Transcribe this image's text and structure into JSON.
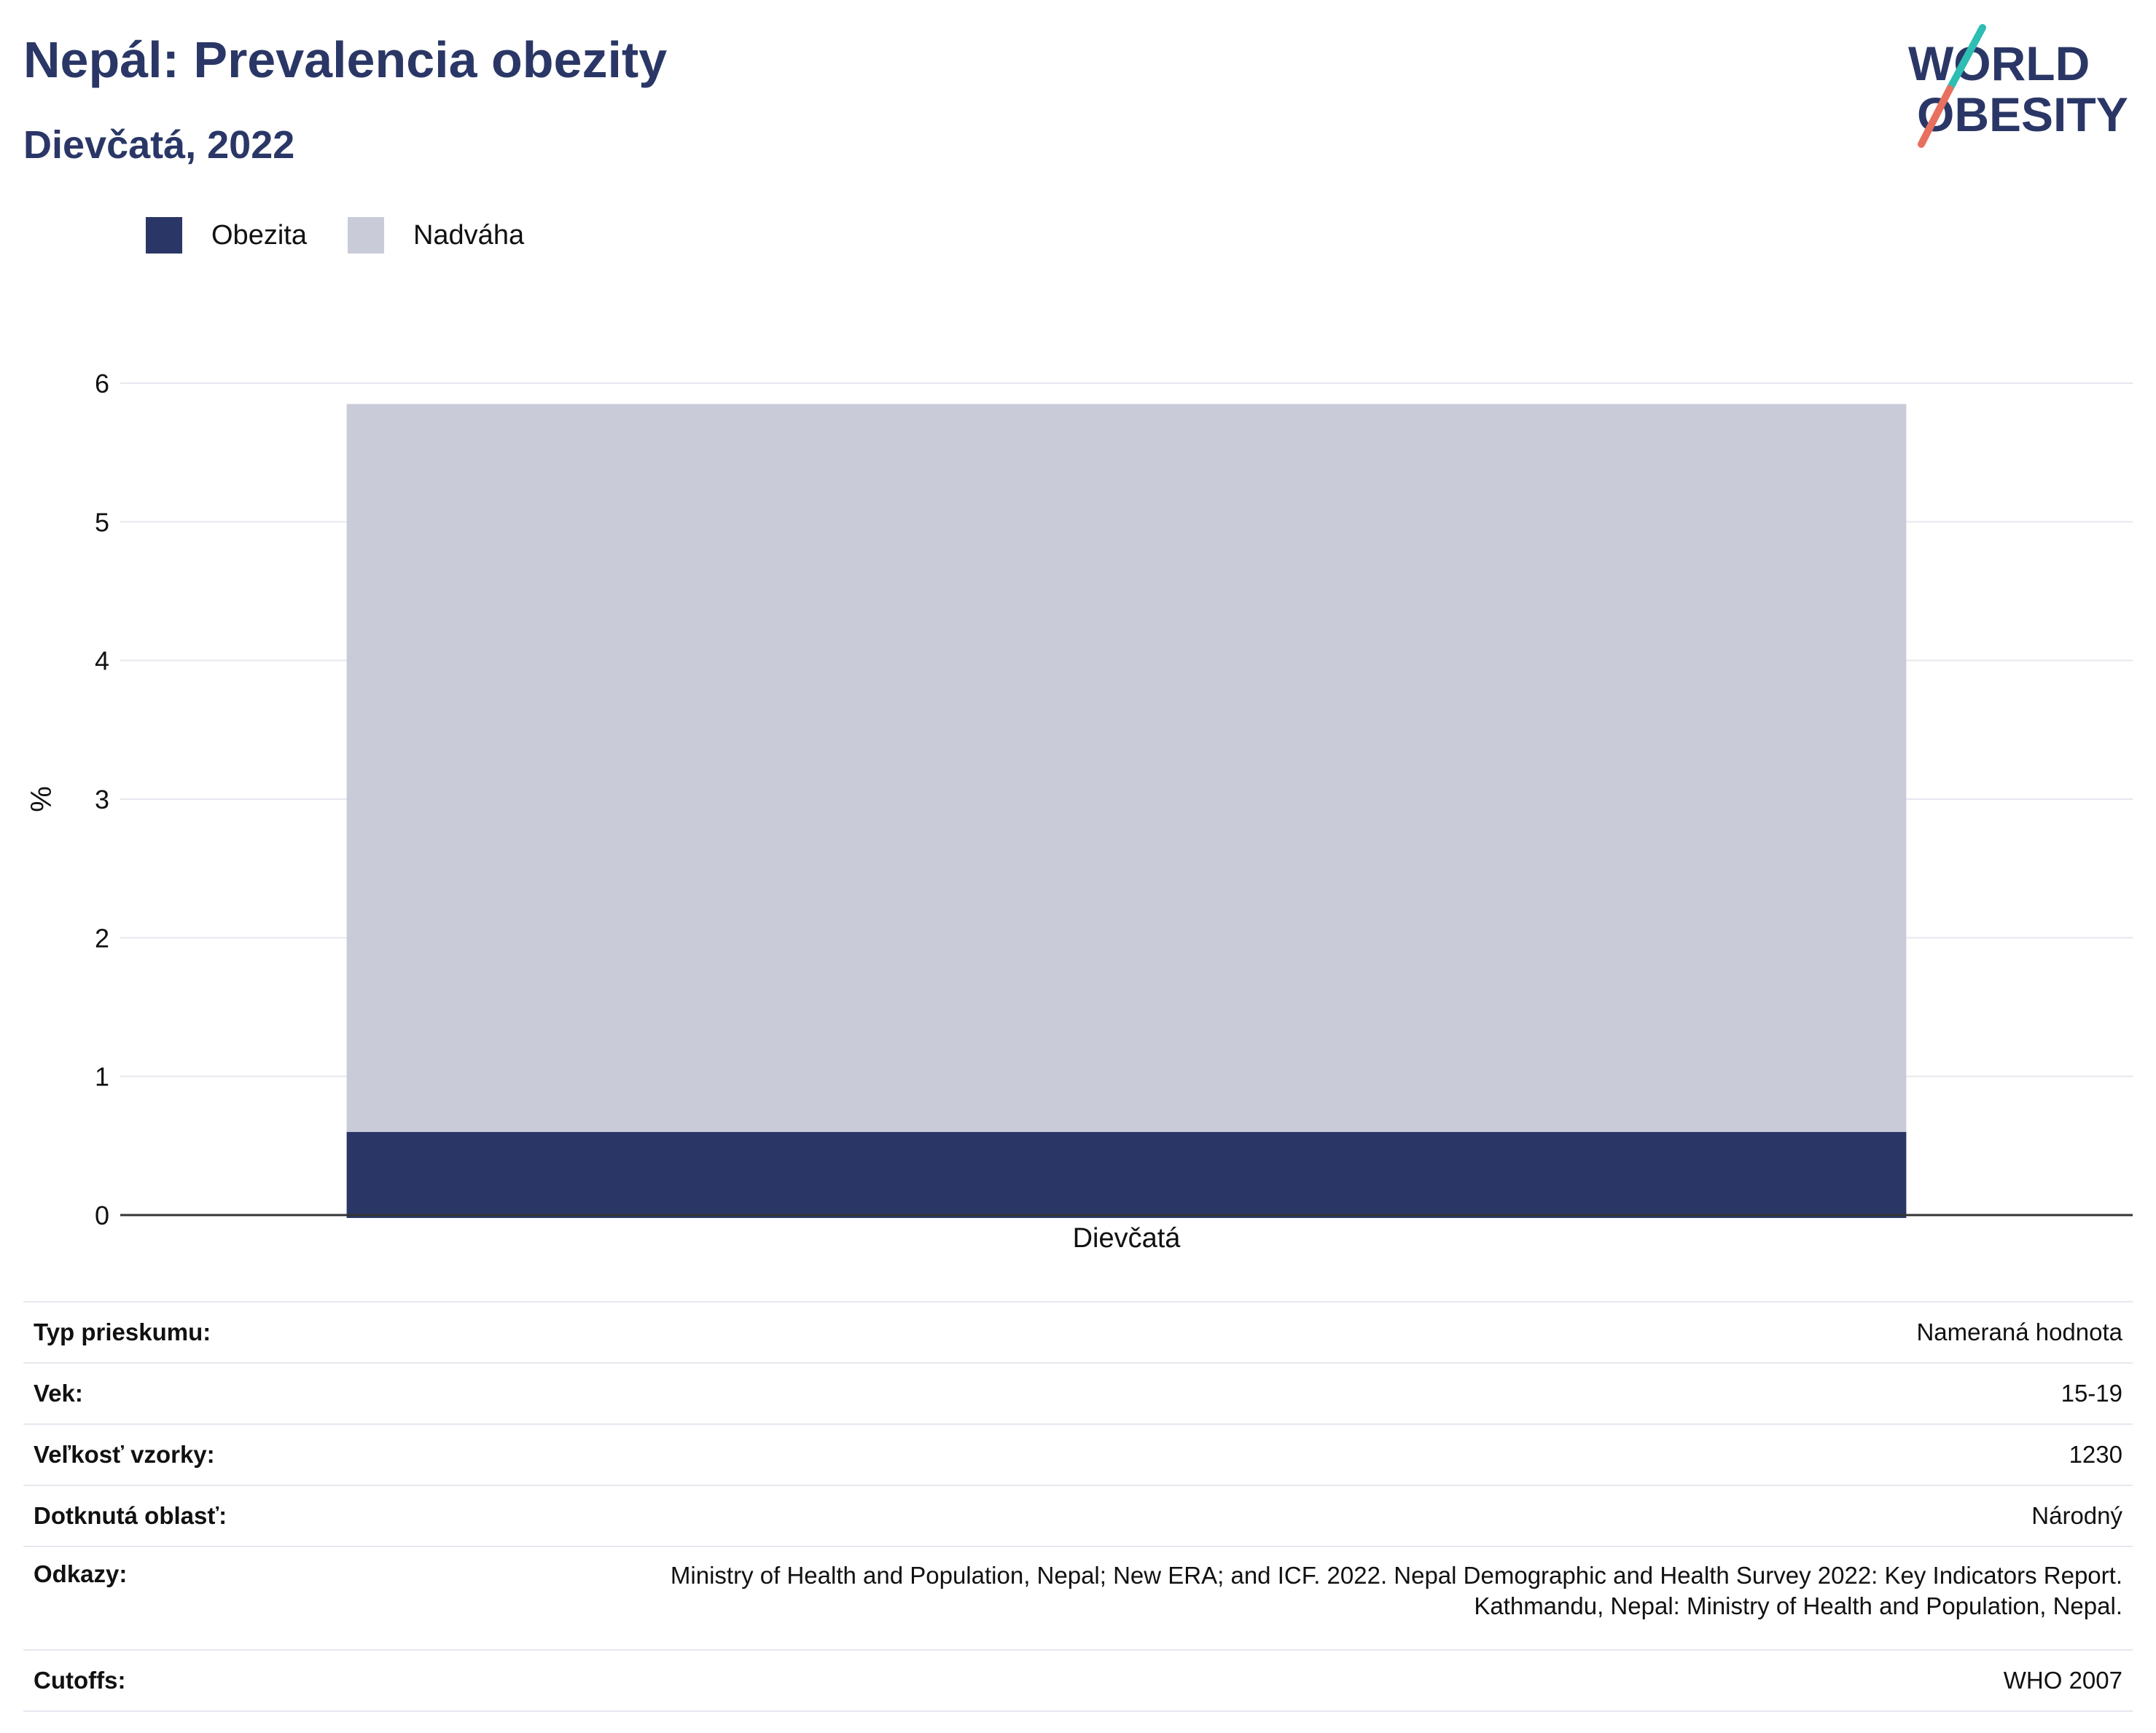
{
  "header": {
    "title": "Nepál: Prevalencia obezity",
    "subtitle": "Dievčatá, 2022"
  },
  "logo": {
    "line1": "WORLD",
    "line2": "OBESITY",
    "accent_teal": "#2ebdb3",
    "accent_coral": "#e8705e"
  },
  "legend": [
    {
      "label": "Obezita",
      "color": "#2a3766"
    },
    {
      "label": "Nadváha",
      "color": "#c9ccd8"
    }
  ],
  "chart_data": {
    "type": "bar",
    "stacked": true,
    "categories": [
      "Dievčatá"
    ],
    "series": [
      {
        "name": "Obezita",
        "values": [
          0.6
        ],
        "color": "#2a3766"
      },
      {
        "name": "Nadváha",
        "values": [
          5.25
        ],
        "color": "#c9ccd8"
      }
    ],
    "title": "",
    "xlabel": "",
    "ylabel": "%",
    "ylim": [
      0,
      6
    ],
    "yticks": [
      "0",
      "1",
      "2",
      "3",
      "4",
      "5",
      "6"
    ],
    "grid": true,
    "legend_position": "top-left"
  },
  "info": [
    {
      "key": "Typ prieskumu:",
      "value": "Nameraná hodnota"
    },
    {
      "key": "Vek:",
      "value": "15-19"
    },
    {
      "key": "Veľkosť vzorky:",
      "value": "1230"
    },
    {
      "key": "Dotknutá oblasť:",
      "value": "Národný"
    },
    {
      "key": "Odkazy:",
      "value_lines": [
        "Ministry of Health and Population, Nepal; New ERA; and ICF. 2022. Nepal Demographic and Health Survey 2022: Key Indicators Report.",
        "Kathmandu, Nepal: Ministry of Health and Population, Nepal."
      ]
    },
    {
      "key": "Cutoffs:",
      "value": "WHO 2007"
    }
  ]
}
